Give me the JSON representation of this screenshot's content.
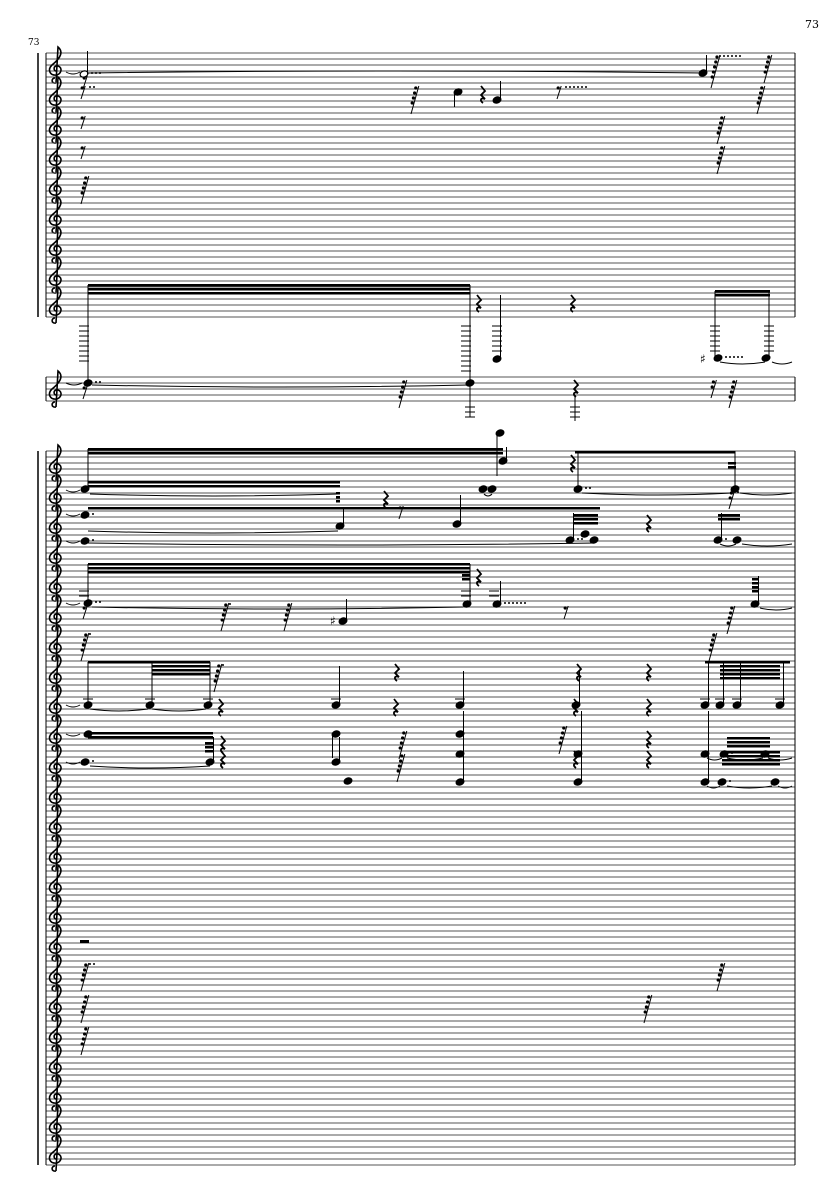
{
  "page": {
    "page_number": "73",
    "measure_number": "73"
  },
  "score": {
    "clef": "treble",
    "systems": [
      {
        "staff_count": 9
      },
      {
        "staff_count": 1
      },
      {
        "staff_count": 24
      }
    ],
    "accidental_glyph": "♯",
    "ink_color": "#000000",
    "staff_line_color": "#555555"
  }
}
